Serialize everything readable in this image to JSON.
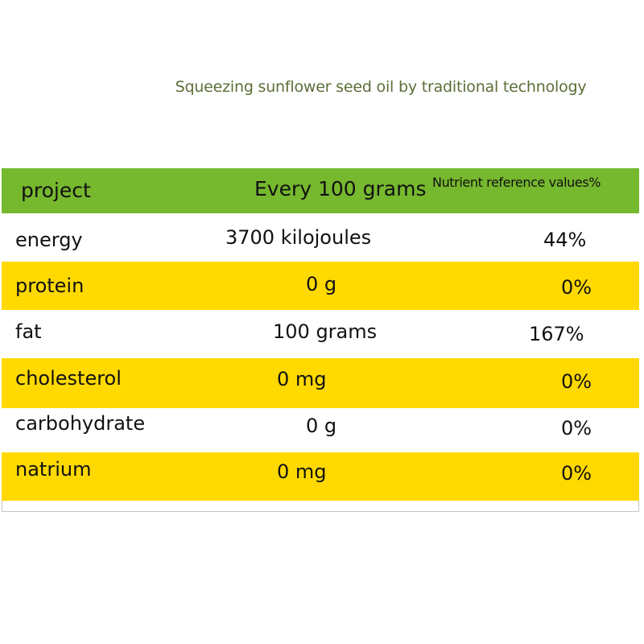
{
  "subtitle": "Squeezing sunflower seed oil by traditional technology",
  "colors": {
    "header_bg": "#76b82e",
    "highlight_row": "#ffd900",
    "subtitle_text": "#5b6e37"
  },
  "table": {
    "headers": [
      "project",
      "Every 100 grams",
      "Nutrient reference values%"
    ],
    "rows": [
      {
        "item": "energy",
        "amount": "3700 kilojoules",
        "nrv": "44%"
      },
      {
        "item": "protein",
        "amount": "0 g",
        "nrv": "0%"
      },
      {
        "item": "fat",
        "amount": "100 grams",
        "nrv": "167%"
      },
      {
        "item": "cholesterol",
        "amount": "0 mg",
        "nrv": "0%"
      },
      {
        "item": "carbohydrate",
        "amount": "0 g",
        "nrv": "0%"
      },
      {
        "item": "natrium",
        "amount": "0 mg",
        "nrv": "0%"
      }
    ]
  }
}
